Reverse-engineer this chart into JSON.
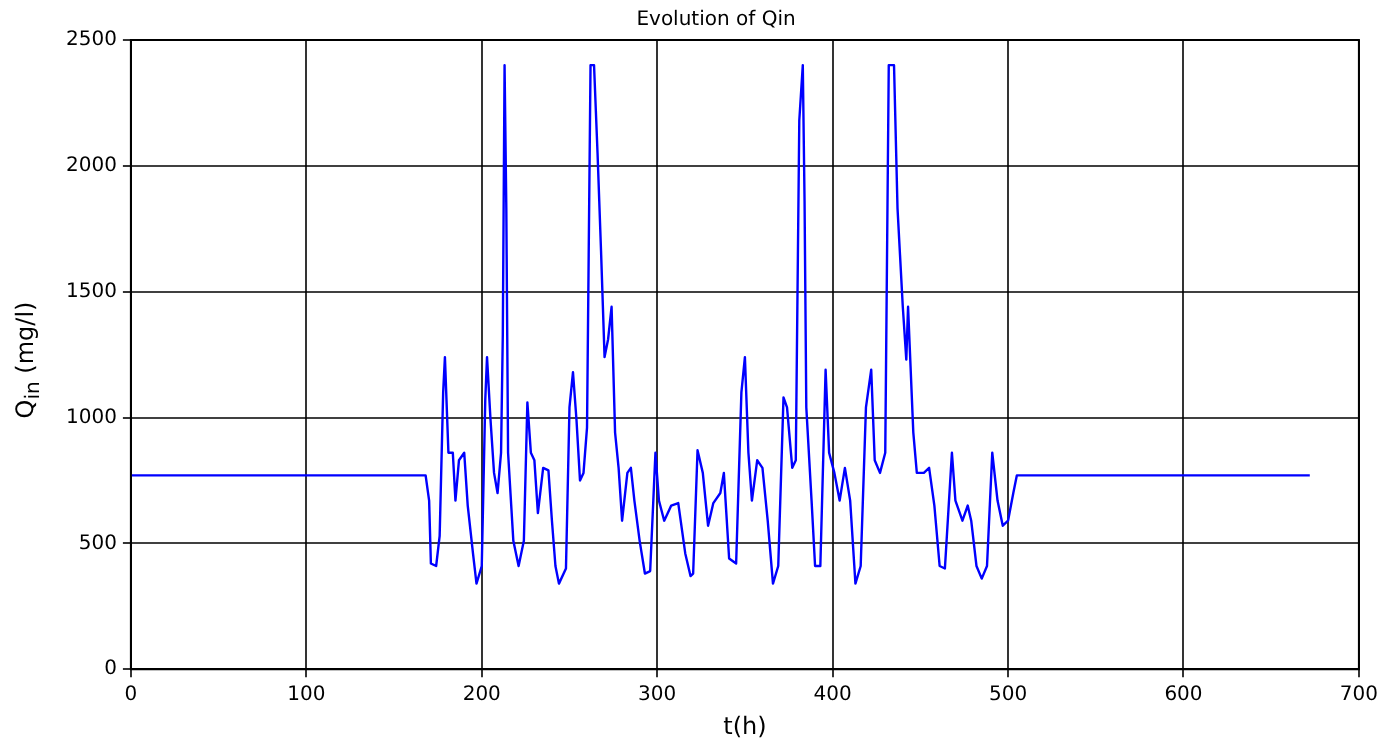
{
  "chart_data": {
    "type": "line",
    "title": "Evolution of Qin",
    "xlabel": "t(h)",
    "ylabel": "Q$_{in}$ (mg/l)",
    "x": [
      0,
      168,
      170,
      171,
      174,
      176,
      178,
      179,
      181,
      183.5,
      185,
      187,
      190,
      192,
      195,
      197,
      200,
      202,
      203,
      205,
      207,
      209,
      211,
      212,
      213,
      214,
      215,
      218,
      221,
      224,
      226,
      228,
      230,
      232,
      235,
      238,
      240,
      242,
      244,
      248,
      250,
      252,
      254,
      256,
      258,
      260,
      262,
      264,
      266,
      268,
      270,
      272,
      274,
      276,
      278,
      280,
      283,
      285,
      287,
      290,
      293,
      296,
      299,
      301,
      304,
      308,
      312,
      316,
      319,
      320.5,
      323,
      326,
      329,
      332,
      336,
      338,
      341,
      345,
      348,
      350,
      352,
      354,
      357,
      360,
      363,
      366,
      369,
      372,
      374,
      377,
      379,
      381,
      383,
      384,
      385,
      388,
      390,
      393,
      396,
      398,
      401,
      404,
      407,
      410,
      413,
      416,
      419,
      422,
      424,
      427,
      430,
      432,
      435,
      437,
      440,
      442,
      443,
      446,
      448,
      452,
      455,
      458,
      461,
      464,
      468,
      470,
      474,
      477,
      479,
      482,
      485,
      488,
      491,
      494,
      497,
      500,
      503,
      505,
      672
    ],
    "series": [
      {
        "color": "#0000ff",
        "values": [
          770,
          770,
          670,
          420,
          410,
          530,
          1100,
          1240,
          860,
          860,
          670,
          830,
          860,
          650,
          460,
          340,
          410,
          1070,
          1240,
          990,
          780,
          700,
          860,
          1330,
          2400,
          1830,
          860,
          510,
          410,
          510,
          1060,
          860,
          830,
          620,
          800,
          790,
          590,
          410,
          340,
          400,
          1040,
          1180,
          990,
          750,
          780,
          960,
          2400,
          2400,
          2050,
          1660,
          1240,
          1310,
          1440,
          940,
          800,
          590,
          780,
          800,
          670,
          510,
          380,
          390,
          860,
          670,
          590,
          650,
          660,
          460,
          370,
          380,
          870,
          780,
          570,
          660,
          700,
          780,
          440,
          420,
          1100,
          1240,
          860,
          670,
          830,
          800,
          590,
          340,
          410,
          1080,
          1040,
          800,
          830,
          2180,
          2400,
          1860,
          1040,
          670,
          410,
          410,
          1190,
          860,
          780,
          670,
          800,
          670,
          340,
          410,
          1040,
          1190,
          830,
          780,
          860,
          2400,
          2400,
          1830,
          1440,
          1230,
          1440,
          940,
          780,
          780,
          800,
          650,
          410,
          400,
          860,
          670,
          590,
          650,
          590,
          410,
          360,
          410,
          860,
          670,
          570,
          590,
          700,
          770,
          770
        ]
      }
    ],
    "xlim": [
      0,
      700
    ],
    "xticks": [
      0,
      100,
      200,
      300,
      400,
      500,
      600,
      700
    ],
    "ylim": [
      0,
      2500
    ],
    "yticks": [
      0,
      500,
      1000,
      1500,
      2000,
      2500
    ],
    "grid": true,
    "legend": false,
    "marker": "none",
    "line_style": "solid"
  }
}
